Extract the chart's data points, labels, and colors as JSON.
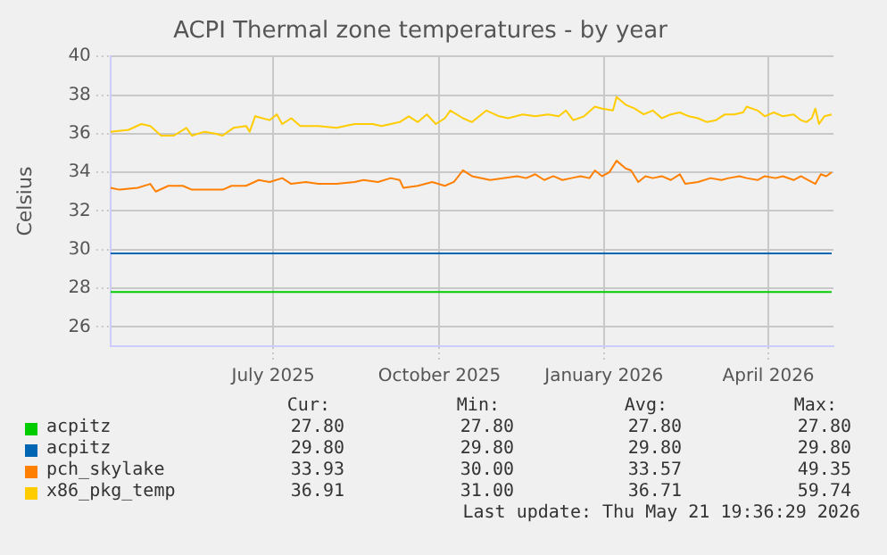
{
  "chart_data": {
    "type": "line",
    "title": "ACPI Thermal zone temperatures - by year",
    "ylabel": "Celsius",
    "xlim": [
      "2025-04-16",
      "2026-05-21"
    ],
    "xticks": [
      {
        "value": "2025-07-15",
        "label": "July 2025"
      },
      {
        "value": "2025-10-15",
        "label": "October 2025"
      },
      {
        "value": "2026-01-14",
        "label": "January 2026"
      },
      {
        "value": "2026-04-15",
        "label": "April 2026"
      }
    ],
    "ylim": [
      25,
      40
    ],
    "yticks": [
      26,
      28,
      30,
      32,
      34,
      36,
      38,
      40
    ],
    "grid": true,
    "legend": "bottom",
    "marker": "none",
    "line_style": "solid",
    "series": [
      {
        "name": "acpitz",
        "color": "#00cc00",
        "x": [
          "2025-04-16",
          "2026-05-20"
        ],
        "values": [
          27.8,
          27.8
        ]
      },
      {
        "name": "acpitz",
        "color": "#0066b3",
        "x": [
          "2025-04-16",
          "2026-05-20"
        ],
        "values": [
          29.8,
          29.8
        ]
      },
      {
        "name": "pch_skylake",
        "color": "#ff8000",
        "x": [
          "2025-04-16",
          "2025-04-21",
          "2025-05-01",
          "2025-05-08",
          "2025-05-11",
          "2025-05-18",
          "2025-05-26",
          "2025-05-31",
          "2025-06-10",
          "2025-06-17",
          "2025-06-22",
          "2025-06-30",
          "2025-07-07",
          "2025-07-13",
          "2025-07-20",
          "2025-07-25",
          "2025-08-02",
          "2025-08-09",
          "2025-08-19",
          "2025-08-29",
          "2025-09-03",
          "2025-09-11",
          "2025-09-18",
          "2025-09-23",
          "2025-09-25",
          "2025-10-03",
          "2025-10-11",
          "2025-10-18",
          "2025-10-23",
          "2025-10-28",
          "2025-11-02",
          "2025-11-12",
          "2025-11-20",
          "2025-11-27",
          "2025-12-02",
          "2025-12-07",
          "2025-12-12",
          "2025-12-17",
          "2025-12-22",
          "2025-12-27",
          "2026-01-01",
          "2026-01-06",
          "2026-01-09",
          "2026-01-13",
          "2026-01-17",
          "2026-01-21",
          "2026-01-26",
          "2026-01-29",
          "2026-02-02",
          "2026-02-06",
          "2026-02-10",
          "2026-02-15",
          "2026-02-20",
          "2026-02-25",
          "2026-02-28",
          "2026-03-07",
          "2026-03-14",
          "2026-03-20",
          "2026-03-24",
          "2026-03-30",
          "2026-04-03",
          "2026-04-09",
          "2026-04-13",
          "2026-04-19",
          "2026-04-23",
          "2026-04-29",
          "2026-05-03",
          "2026-05-07",
          "2026-05-11",
          "2026-05-14",
          "2026-05-17",
          "2026-05-20"
        ],
        "values": [
          33.2,
          33.1,
          33.2,
          33.4,
          33.0,
          33.3,
          33.3,
          33.1,
          33.1,
          33.1,
          33.3,
          33.3,
          33.6,
          33.5,
          33.7,
          33.4,
          33.5,
          33.4,
          33.4,
          33.5,
          33.6,
          33.5,
          33.7,
          33.6,
          33.2,
          33.3,
          33.5,
          33.3,
          33.5,
          34.1,
          33.8,
          33.6,
          33.7,
          33.8,
          33.7,
          33.9,
          33.6,
          33.8,
          33.6,
          33.7,
          33.8,
          33.7,
          34.1,
          33.8,
          34.0,
          34.6,
          34.2,
          34.1,
          33.5,
          33.8,
          33.7,
          33.8,
          33.6,
          33.9,
          33.4,
          33.5,
          33.7,
          33.6,
          33.7,
          33.8,
          33.7,
          33.6,
          33.8,
          33.7,
          33.8,
          33.6,
          33.8,
          33.6,
          33.4,
          33.9,
          33.8,
          34.0
        ]
      },
      {
        "name": "x86_pkg_temp",
        "color": "#ffcc00",
        "x": [
          "2025-04-16",
          "2025-04-26",
          "2025-05-03",
          "2025-05-08",
          "2025-05-14",
          "2025-05-21",
          "2025-05-28",
          "2025-05-31",
          "2025-06-07",
          "2025-06-13",
          "2025-06-17",
          "2025-06-23",
          "2025-06-30",
          "2025-07-02",
          "2025-07-05",
          "2025-07-13",
          "2025-07-17",
          "2025-07-20",
          "2025-07-25",
          "2025-07-30",
          "2025-08-09",
          "2025-08-19",
          "2025-08-29",
          "2025-09-08",
          "2025-09-13",
          "2025-09-23",
          "2025-09-28",
          "2025-10-03",
          "2025-10-08",
          "2025-10-13",
          "2025-10-18",
          "2025-10-21",
          "2025-10-28",
          "2025-11-02",
          "2025-11-10",
          "2025-11-17",
          "2025-11-22",
          "2025-11-30",
          "2025-12-07",
          "2025-12-14",
          "2025-12-20",
          "2025-12-24",
          "2025-12-28",
          "2026-01-03",
          "2026-01-09",
          "2026-01-13",
          "2026-01-19",
          "2026-01-21",
          "2026-01-26",
          "2026-01-31",
          "2026-02-05",
          "2026-02-10",
          "2026-02-15",
          "2026-02-20",
          "2026-02-25",
          "2026-03-02",
          "2026-03-07",
          "2026-03-12",
          "2026-03-17",
          "2026-03-22",
          "2026-03-27",
          "2026-04-01",
          "2026-04-03",
          "2026-04-09",
          "2026-04-13",
          "2026-04-18",
          "2026-04-23",
          "2026-04-29",
          "2026-05-03",
          "2026-05-06",
          "2026-05-09",
          "2026-05-11",
          "2026-05-13",
          "2026-05-16",
          "2026-05-20"
        ],
        "values": [
          36.1,
          36.2,
          36.5,
          36.4,
          35.9,
          35.9,
          36.3,
          35.9,
          36.1,
          36.0,
          35.9,
          36.3,
          36.4,
          36.1,
          36.9,
          36.7,
          37.0,
          36.5,
          36.8,
          36.4,
          36.4,
          36.3,
          36.5,
          36.5,
          36.4,
          36.6,
          36.9,
          36.6,
          37.0,
          36.5,
          36.8,
          37.2,
          36.8,
          36.6,
          37.2,
          36.9,
          36.8,
          37.0,
          36.9,
          37.0,
          36.9,
          37.2,
          36.7,
          36.9,
          37.4,
          37.3,
          37.2,
          37.9,
          37.5,
          37.3,
          37.0,
          37.2,
          36.8,
          37.0,
          37.1,
          36.9,
          36.8,
          36.6,
          36.7,
          37.0,
          37.0,
          37.1,
          37.4,
          37.2,
          36.9,
          37.1,
          36.9,
          37.0,
          36.7,
          36.6,
          36.8,
          37.3,
          36.5,
          36.9,
          37.0
        ]
      }
    ],
    "annotations": [
      "Cur:",
      "Min:",
      "Avg:",
      "Max:",
      "27.80",
      "27.80",
      "27.80",
      "27.80",
      "29.80",
      "29.80",
      "29.80",
      "29.80",
      "33.93",
      "30.00",
      "33.57",
      "49.35",
      "36.91",
      "31.00",
      "36.71",
      "59.74",
      "Last update: Thu May 21 19:36:29 2026"
    ]
  }
}
